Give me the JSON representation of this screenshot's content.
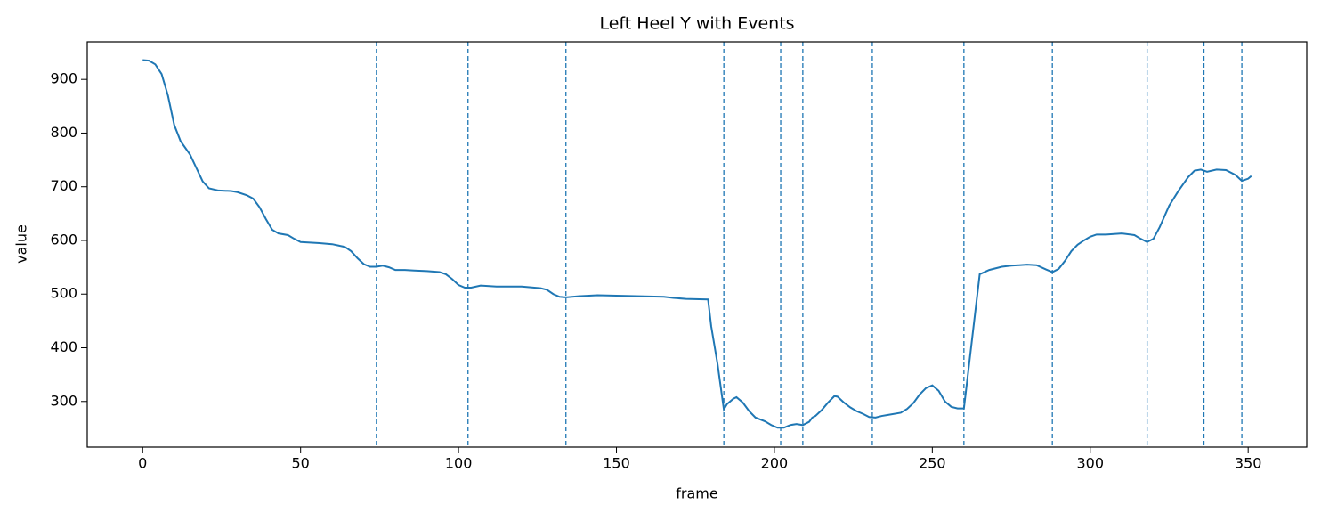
{
  "chart_data": {
    "type": "line",
    "title": "Left Heel Y with Events",
    "x_label": "frame",
    "y_label": "value",
    "color": "#1f77b4",
    "event_color": "#1f77b4",
    "x": [
      0,
      2,
      4,
      6,
      8,
      10,
      12,
      15,
      17,
      19,
      21,
      24,
      28,
      30,
      33,
      35,
      37,
      39,
      41,
      43,
      46,
      48,
      50,
      53,
      56,
      60,
      64,
      66,
      68,
      70,
      72,
      74,
      76,
      78,
      80,
      83,
      86,
      90,
      94,
      96,
      98,
      100,
      102,
      104,
      107,
      112,
      120,
      126,
      128,
      130,
      132,
      134,
      138,
      144,
      150,
      165,
      168,
      172,
      179,
      180,
      182,
      184,
      185,
      187,
      188,
      190,
      192,
      194,
      197,
      199,
      201,
      203,
      205,
      207,
      209,
      211,
      212,
      213,
      215,
      217,
      219,
      220,
      222,
      224,
      226,
      228,
      230,
      232,
      234,
      236,
      240,
      242,
      244,
      246,
      248,
      250,
      252,
      254,
      256,
      258,
      260,
      265,
      268,
      272,
      275,
      280,
      283,
      286,
      288,
      290,
      292,
      294,
      296,
      298,
      300,
      302,
      305,
      310,
      314,
      316,
      318,
      320,
      322,
      325,
      328,
      331,
      333,
      335,
      337,
      340,
      343,
      346,
      348,
      350,
      351
    ],
    "values": [
      936,
      935,
      928,
      910,
      870,
      815,
      785,
      760,
      735,
      710,
      697,
      693,
      692,
      690,
      684,
      678,
      662,
      640,
      620,
      613,
      610,
      603,
      597,
      596,
      595,
      593,
      588,
      580,
      567,
      556,
      551,
      551,
      553,
      550,
      545,
      545,
      544,
      543,
      541,
      537,
      528,
      517,
      512,
      512,
      516,
      514,
      514,
      511,
      508,
      500,
      495,
      494,
      496,
      498,
      497,
      495,
      493,
      491,
      490,
      440,
      370,
      285,
      295,
      305,
      308,
      298,
      282,
      270,
      263,
      256,
      251,
      251,
      256,
      258,
      256,
      262,
      270,
      273,
      284,
      298,
      310,
      309,
      298,
      289,
      282,
      277,
      271,
      270,
      273,
      275,
      279,
      286,
      297,
      313,
      325,
      330,
      320,
      300,
      290,
      287,
      287,
      537,
      545,
      551,
      553,
      555,
      554,
      546,
      541,
      547,
      562,
      580,
      592,
      600,
      607,
      611,
      611,
      613,
      610,
      603,
      597,
      603,
      625,
      665,
      693,
      718,
      730,
      732,
      728,
      732,
      731,
      722,
      711,
      715,
      720
    ],
    "events": [
      74,
      103,
      134,
      184,
      202,
      209,
      231,
      260,
      288,
      318,
      336,
      348
    ],
    "xlim": [
      -17.55,
      368.55
    ],
    "ylim": [
      215,
      970
    ],
    "xticks": [
      0,
      50,
      100,
      150,
      200,
      250,
      300,
      350
    ],
    "yticks": [
      300,
      400,
      500,
      600,
      700,
      800,
      900
    ]
  }
}
